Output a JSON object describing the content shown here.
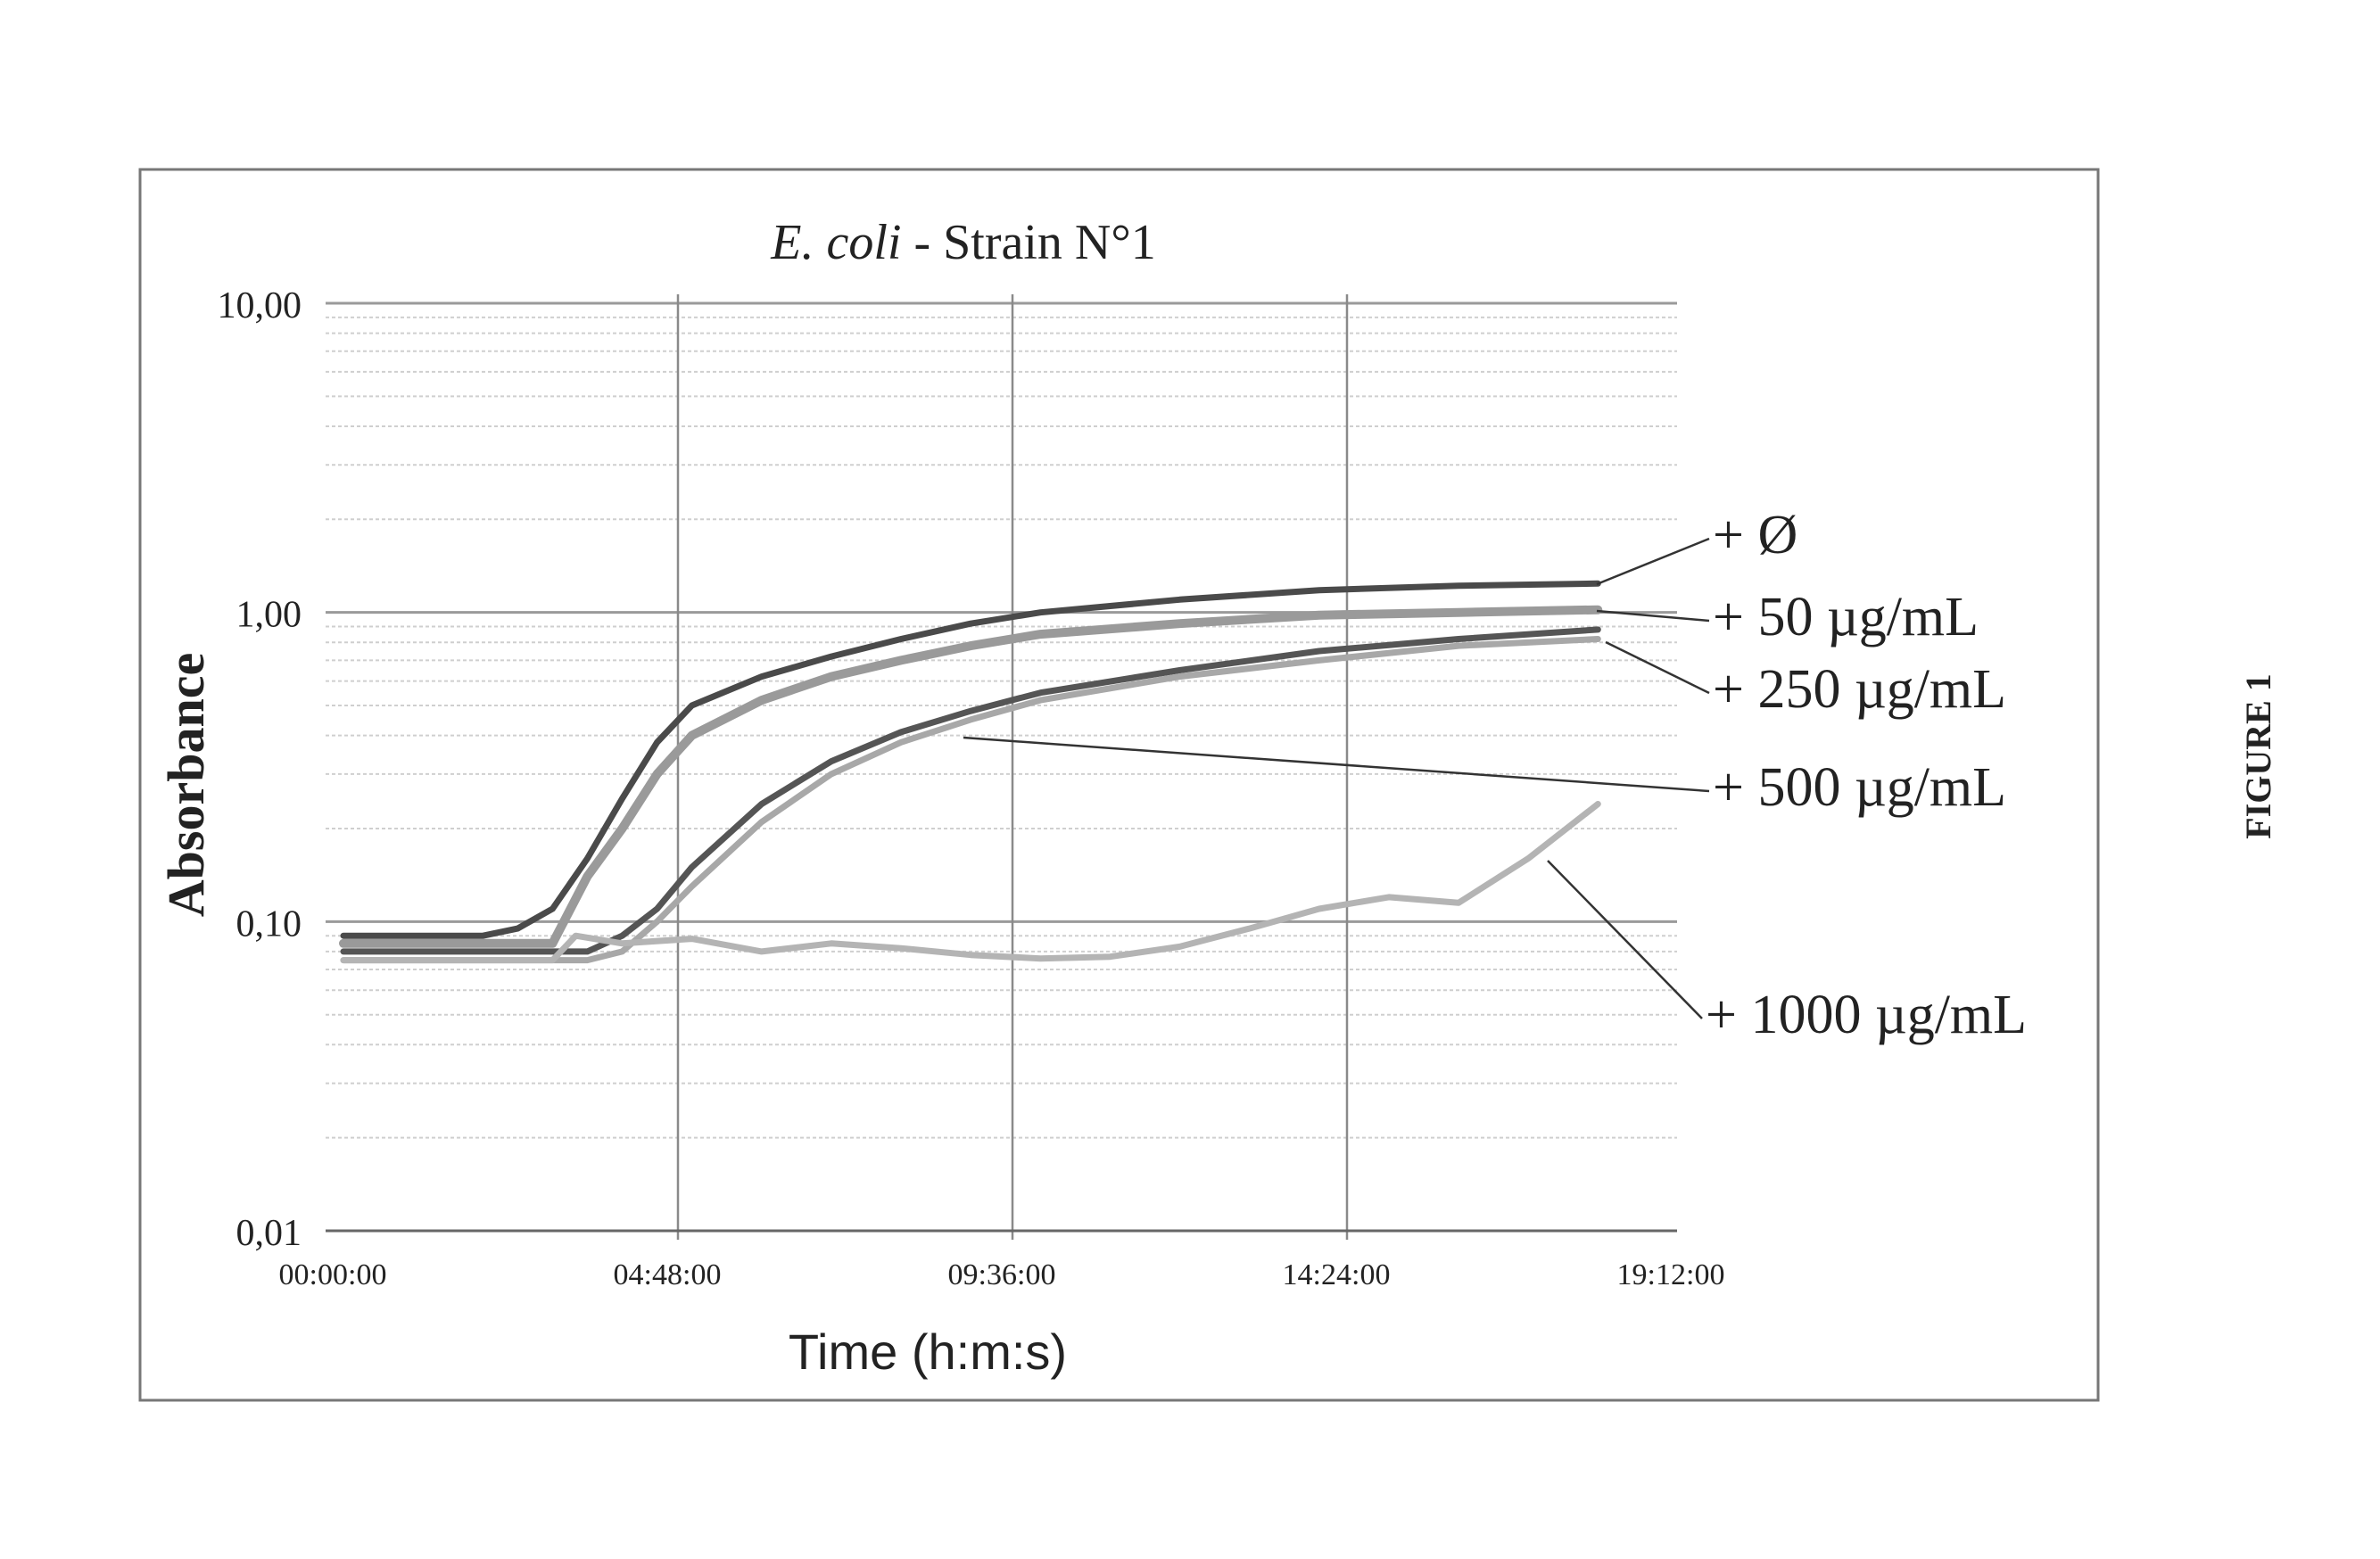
{
  "figure_label": "FIGURE 1",
  "chart_data": {
    "type": "line",
    "title_italic": "E. coli",
    "title_rest": " - Strain N°1",
    "xlabel": "Time (h:m:s)",
    "ylabel": "Absorbance",
    "y_scale": "log",
    "ylim": [
      0.01,
      10
    ],
    "y_ticks": [
      {
        "value": 10,
        "label": "10,00"
      },
      {
        "value": 1,
        "label": "1,00"
      },
      {
        "value": 0.1,
        "label": "0,10"
      },
      {
        "value": 0.01,
        "label": "0,01"
      }
    ],
    "xlim": [
      "00:00:00",
      "19:12:00"
    ],
    "x_ticks": [
      "00:00:00",
      "04:48:00",
      "09:36:00",
      "14:24:00",
      "19:12:00"
    ],
    "grid": true,
    "series": [
      {
        "name": "+ Ø",
        "color": "#4a4a4a",
        "x": [
          "00:00:00",
          "02:00:00",
          "02:30:00",
          "03:00:00",
          "03:30:00",
          "04:00:00",
          "04:30:00",
          "05:00:00",
          "06:00:00",
          "07:00:00",
          "08:00:00",
          "09:00:00",
          "10:00:00",
          "12:00:00",
          "14:00:00",
          "16:00:00",
          "18:00:00"
        ],
        "y": [
          0.09,
          0.09,
          0.095,
          0.11,
          0.16,
          0.25,
          0.38,
          0.5,
          0.62,
          0.72,
          0.82,
          0.92,
          1.0,
          1.1,
          1.18,
          1.22,
          1.24
        ]
      },
      {
        "name": "+ 50 µg/mL",
        "color": "#9a9a9a",
        "x": [
          "00:00:00",
          "03:00:00",
          "03:30:00",
          "04:00:00",
          "04:30:00",
          "05:00:00",
          "06:00:00",
          "07:00:00",
          "08:00:00",
          "09:00:00",
          "10:00:00",
          "12:00:00",
          "14:00:00",
          "16:00:00",
          "18:00:00"
        ],
        "y": [
          0.085,
          0.085,
          0.14,
          0.2,
          0.3,
          0.4,
          0.52,
          0.62,
          0.7,
          0.78,
          0.85,
          0.92,
          0.98,
          1.0,
          1.02
        ]
      },
      {
        "name": "+ 250 µg/mL",
        "color": "#555555",
        "x": [
          "00:00:00",
          "03:30:00",
          "04:00:00",
          "04:30:00",
          "05:00:00",
          "06:00:00",
          "07:00:00",
          "08:00:00",
          "09:00:00",
          "10:00:00",
          "12:00:00",
          "14:00:00",
          "16:00:00",
          "18:00:00"
        ],
        "y": [
          0.08,
          0.08,
          0.09,
          0.11,
          0.15,
          0.24,
          0.33,
          0.41,
          0.48,
          0.55,
          0.65,
          0.75,
          0.82,
          0.88
        ]
      },
      {
        "name": "+ 500 µg/mL",
        "color": "#a8a8a8",
        "x": [
          "00:00:00",
          "03:30:00",
          "04:00:00",
          "04:30:00",
          "05:00:00",
          "06:00:00",
          "07:00:00",
          "08:00:00",
          "09:00:00",
          "10:00:00",
          "12:00:00",
          "14:00:00",
          "16:00:00",
          "18:00:00"
        ],
        "y": [
          0.075,
          0.075,
          0.08,
          0.1,
          0.13,
          0.21,
          0.3,
          0.38,
          0.45,
          0.52,
          0.62,
          0.7,
          0.78,
          0.82
        ]
      },
      {
        "name": "+ 1000 µg/mL",
        "color": "#b4b4b4",
        "x": [
          "00:00:00",
          "03:00:00",
          "03:20:00",
          "04:00:00",
          "05:00:00",
          "06:00:00",
          "07:00:00",
          "08:00:00",
          "09:00:00",
          "10:00:00",
          "11:00:00",
          "12:00:00",
          "13:00:00",
          "14:00:00",
          "15:00:00",
          "16:00:00",
          "17:00:00",
          "18:00:00"
        ],
        "y": [
          0.075,
          0.075,
          0.09,
          0.085,
          0.088,
          0.08,
          0.085,
          0.082,
          0.078,
          0.076,
          0.077,
          0.083,
          0.095,
          0.11,
          0.12,
          0.115,
          0.16,
          0.24
        ]
      }
    ]
  }
}
